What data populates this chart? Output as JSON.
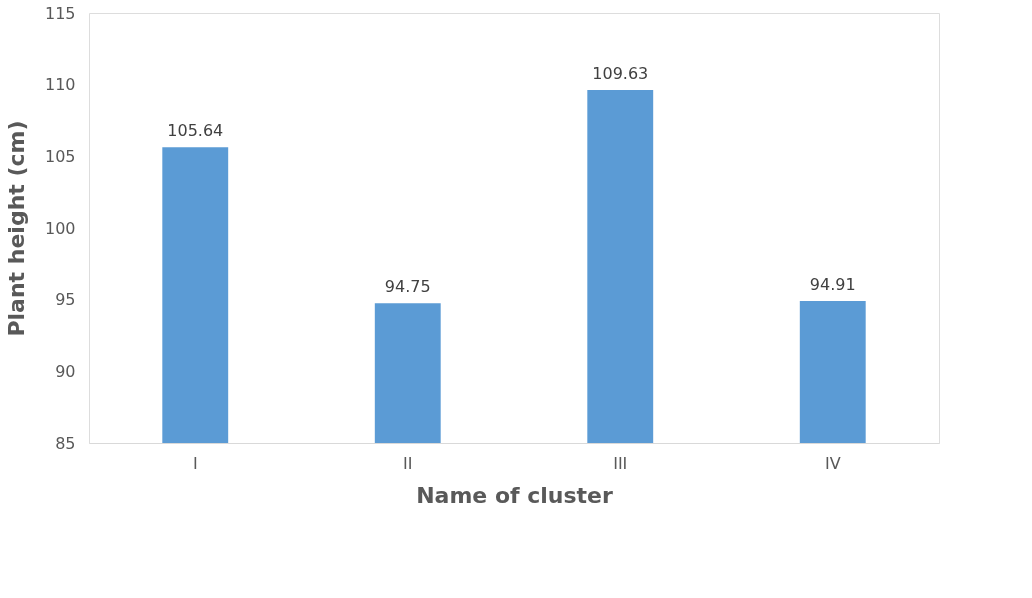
{
  "chart_data": {
    "type": "bar",
    "xlabel": "Name of cluster",
    "ylabel": "Plant height (cm)",
    "categories": [
      "I",
      "II",
      "III",
      "IV"
    ],
    "values": [
      105.64,
      94.75,
      109.63,
      94.91
    ],
    "color": "#5b9bd5",
    "ylim": [
      85,
      115
    ],
    "yticks": [
      85,
      90,
      95,
      100,
      105,
      110,
      115
    ],
    "grid": false,
    "data_labels": true
  }
}
